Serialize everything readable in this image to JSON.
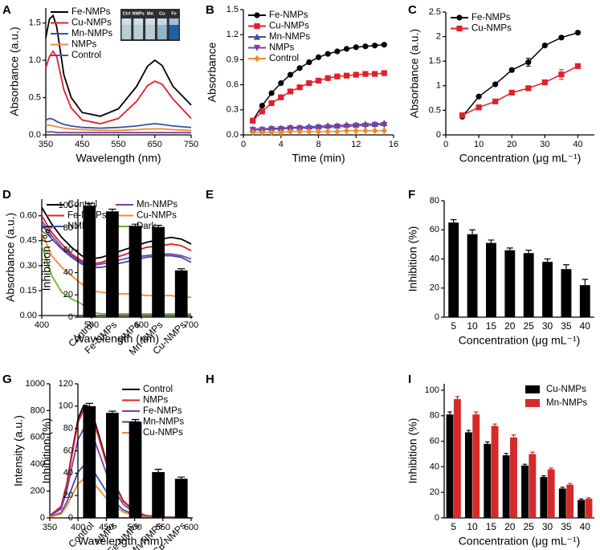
{
  "chart_data": [
    {
      "label": "A",
      "type": "line",
      "xlabel": "Wavelength (nm)",
      "ylabel": "Absorbance (a.u.)",
      "x": [
        350,
        360,
        370,
        380,
        400,
        420,
        450,
        500,
        550,
        600,
        630,
        650,
        670,
        700,
        750
      ],
      "xlim": [
        350,
        750
      ],
      "xticks": [
        350,
        450,
        550,
        650,
        750
      ],
      "ylim": [
        0,
        1.7
      ],
      "yticks": [
        {
          "value": 0,
          "label": "0.0"
        },
        0.5,
        {
          "value": 1,
          "label": "1.0"
        },
        1.5
      ],
      "legend": "upper left",
      "annotations": [
        "Ctrl",
        "NMPs",
        "Mn",
        "Cu",
        "Fe"
      ],
      "series": [
        {
          "name": "Fe-NMPs",
          "color": "#000000",
          "values": [
            1.3,
            1.55,
            1.6,
            1.45,
            0.8,
            0.5,
            0.3,
            0.25,
            0.35,
            0.65,
            0.92,
            1.0,
            0.93,
            0.65,
            0.4
          ]
        },
        {
          "name": "Cu-NMPs",
          "color": "#e0202a",
          "values": [
            0.9,
            1.05,
            1.12,
            1.05,
            0.6,
            0.36,
            0.2,
            0.15,
            0.22,
            0.45,
            0.66,
            0.72,
            0.68,
            0.48,
            0.22
          ]
        },
        {
          "name": "Mn-NMPs",
          "color": "#3a4fa8",
          "values": [
            0.2,
            0.22,
            0.21,
            0.18,
            0.14,
            0.12,
            0.1,
            0.09,
            0.1,
            0.12,
            0.14,
            0.15,
            0.14,
            0.12,
            0.1
          ]
        },
        {
          "name": "NMPs",
          "color": "#f28a30",
          "values": [
            0.13,
            0.13,
            0.12,
            0.11,
            0.09,
            0.08,
            0.07,
            0.06,
            0.06,
            0.07,
            0.08,
            0.08,
            0.08,
            0.07,
            0.06
          ]
        },
        {
          "name": "Control",
          "color": "#7b3fa0",
          "values": [
            0.04,
            0.04,
            0.04,
            0.03,
            0.03,
            0.03,
            0.03,
            0.03,
            0.03,
            0.03,
            0.03,
            0.03,
            0.03,
            0.03,
            0.03
          ]
        }
      ]
    },
    {
      "label": "B",
      "type": "line",
      "xlabel": "Time (min)",
      "ylabel": "Absorbance",
      "x": [
        1,
        2,
        3,
        4,
        5,
        6,
        7,
        8,
        9,
        10,
        11,
        12,
        13,
        14,
        15
      ],
      "xlim": [
        0,
        16
      ],
      "xticks": [
        0,
        4,
        8,
        12,
        16
      ],
      "ylim": [
        0,
        1.5
      ],
      "yticks": [
        {
          "value": 0,
          "label": "0.0"
        },
        0.3,
        0.6,
        0.9,
        1.2,
        1.5
      ],
      "legend": "upper left",
      "markers": true,
      "series": [
        {
          "name": "Fe-NMPs",
          "color": "#000000",
          "marker": "circle",
          "values": [
            0.17,
            0.35,
            0.5,
            0.62,
            0.72,
            0.8,
            0.87,
            0.93,
            0.97,
            1.0,
            1.03,
            1.05,
            1.06,
            1.07,
            1.08
          ]
        },
        {
          "name": "Cu-NMPs",
          "color": "#e0202a",
          "marker": "square",
          "values": [
            0.17,
            0.28,
            0.38,
            0.45,
            0.52,
            0.57,
            0.62,
            0.65,
            0.68,
            0.7,
            0.71,
            0.72,
            0.73,
            0.73,
            0.74
          ]
        },
        {
          "name": "Mn-NMPs",
          "color": "#3a4fa8",
          "marker": "triangle",
          "values": [
            0.07,
            0.07,
            0.08,
            0.08,
            0.09,
            0.09,
            0.1,
            0.1,
            0.11,
            0.11,
            0.12,
            0.12,
            0.13,
            0.13,
            0.14
          ]
        },
        {
          "name": "NMPs",
          "color": "#7b3fa0",
          "marker": "triangle-down",
          "values": [
            0.06,
            0.06,
            0.07,
            0.07,
            0.08,
            0.08,
            0.08,
            0.09,
            0.09,
            0.1,
            0.1,
            0.11,
            0.11,
            0.12,
            0.12
          ]
        },
        {
          "name": "Control",
          "color": "#f28a30",
          "marker": "diamond",
          "values": [
            0.03,
            0.03,
            0.03,
            0.03,
            0.04,
            0.04,
            0.04,
            0.04,
            0.04,
            0.04,
            0.05,
            0.05,
            0.05,
            0.05,
            0.05
          ]
        }
      ]
    },
    {
      "label": "C",
      "type": "line",
      "xlabel": "Concentration (μg mL⁻¹)",
      "ylabel": "Absorbance (a.u.)",
      "x": [
        5,
        10,
        15,
        20,
        25,
        30,
        35,
        40
      ],
      "xlim": [
        0,
        45
      ],
      "xticks": [
        0,
        10,
        20,
        30,
        40
      ],
      "ylim": [
        0,
        2.5
      ],
      "yticks": [
        0,
        0.5,
        1,
        1.5,
        2,
        2.5
      ],
      "legend": "upper left",
      "markers": true,
      "series": [
        {
          "name": "Fe-NMPs",
          "color": "#000000",
          "marker": "circle",
          "values": [
            0.37,
            0.78,
            1.03,
            1.32,
            1.48,
            1.82,
            1.98,
            2.08
          ],
          "errors": [
            0.02,
            0.02,
            0.02,
            0.03,
            0.08,
            0.03,
            0.03,
            0.02
          ]
        },
        {
          "name": "Cu-NMPs",
          "color": "#e0202a",
          "marker": "square",
          "values": [
            0.4,
            0.56,
            0.68,
            0.86,
            0.95,
            1.07,
            1.23,
            1.4
          ],
          "errors": [
            0.02,
            0.02,
            0.02,
            0.02,
            0.03,
            0.03,
            0.1,
            0.03
          ]
        }
      ]
    },
    {
      "label": "D",
      "type": "line",
      "xlabel": "Wavelength (nm)",
      "ylabel": "Absorbance (a.u.)",
      "x": [
        400,
        420,
        440,
        460,
        480,
        500,
        520,
        550,
        580,
        610,
        640,
        660,
        680,
        700
      ],
      "xlim": [
        400,
        700
      ],
      "xticks": [
        400,
        500,
        600,
        700
      ],
      "ylim": [
        0,
        0.7
      ],
      "yticks": [
        {
          "value": 0,
          "label": "0.00"
        },
        0.15,
        {
          "value": 0.3,
          "label": "0.30"
        },
        0.45,
        {
          "value": 0.6,
          "label": "0.60"
        }
      ],
      "legend": "upper",
      "legend_columns": 2,
      "series": [
        {
          "name": "Control",
          "color": "#000000",
          "values": [
            0.65,
            0.55,
            0.47,
            0.41,
            0.36,
            0.34,
            0.35,
            0.38,
            0.41,
            0.44,
            0.46,
            0.47,
            0.46,
            0.43
          ]
        },
        {
          "name": "Mn-NMPs",
          "color": "#7b3fa0",
          "values": [
            0.57,
            0.48,
            0.41,
            0.36,
            0.32,
            0.3,
            0.31,
            0.33,
            0.35,
            0.36,
            0.37,
            0.37,
            0.36,
            0.34
          ]
        },
        {
          "name": "Fe-NMPs",
          "color": "#e0202a",
          "values": [
            0.6,
            0.5,
            0.43,
            0.37,
            0.33,
            0.31,
            0.32,
            0.35,
            0.38,
            0.41,
            0.42,
            0.43,
            0.42,
            0.39
          ]
        },
        {
          "name": "Cu-NMPs",
          "color": "#f28a30",
          "values": [
            0.5,
            0.36,
            0.29,
            0.24,
            0.19,
            0.15,
            0.14,
            0.13,
            0.13,
            0.12,
            0.12,
            0.12,
            0.11,
            0.11
          ]
        },
        {
          "name": "NMPs",
          "color": "#3a4fa8",
          "values": [
            0.55,
            0.46,
            0.4,
            0.35,
            0.31,
            0.29,
            0.29,
            0.31,
            0.33,
            0.35,
            0.36,
            0.36,
            0.35,
            0.32
          ]
        },
        {
          "name": "Dark",
          "color": "#6ab42d",
          "values": [
            0.42,
            0.24,
            0.14,
            0.1,
            0.07,
            0.02,
            0.01,
            0.01,
            0.01,
            0.01,
            0.01,
            0.01,
            0.01,
            0.01
          ]
        }
      ]
    },
    {
      "label": "E",
      "type": "bar",
      "ylabel": "Inhibition (%)",
      "color": "#000000",
      "xtick_rotation": 45,
      "categories": [
        "Control",
        "Fe-NMPs",
        "NMPs",
        "Mn-NMPs",
        "Cu-NMPs"
      ],
      "values": [
        100,
        95,
        82,
        81,
        42
      ],
      "errors": [
        2,
        2,
        1.5,
        1.5,
        1.5
      ],
      "ylim": [
        0,
        106
      ],
      "yticks": [
        0,
        20,
        40,
        60,
        80,
        100
      ]
    },
    {
      "label": "F",
      "type": "bar",
      "xlabel": "Concentration (μg mL⁻¹)",
      "ylabel": "Inhibition (%)",
      "color": "#000000",
      "categories": [
        "5",
        "10",
        "15",
        "20",
        "25",
        "30",
        "35",
        "40"
      ],
      "values": [
        65,
        57,
        51,
        46,
        44,
        38,
        33,
        22
      ],
      "errors": [
        2,
        3,
        2,
        1.5,
        2,
        2,
        3,
        4
      ],
      "ylim": [
        0,
        80
      ],
      "yticks": [
        0,
        20,
        40,
        60,
        80
      ]
    },
    {
      "label": "G",
      "type": "line",
      "xlabel": "Wavelength (nm)",
      "ylabel": "Intensity (a.u.)",
      "x": [
        350,
        370,
        380,
        390,
        400,
        410,
        415,
        420,
        430,
        440,
        450,
        460,
        480,
        500,
        520,
        550,
        600
      ],
      "xlim": [
        350,
        600
      ],
      "xticks": [
        350,
        400,
        450,
        500,
        550,
        600
      ],
      "ylim": [
        0,
        1000
      ],
      "yticks": [
        0,
        200,
        400,
        600,
        800,
        1000
      ],
      "legend": "upper right",
      "series": [
        {
          "name": "Control",
          "color": "#000000",
          "values": [
            17,
            84,
            252,
            504,
            739,
            840,
            840,
            815,
            714,
            571,
            420,
            294,
            126,
            50,
            17,
            8,
            0
          ]
        },
        {
          "name": "NMPs",
          "color": "#e0202a",
          "values": [
            16,
            81,
            243,
            486,
            713,
            810,
            810,
            786,
            689,
            551,
            405,
            284,
            122,
            49,
            16,
            8,
            0
          ]
        },
        {
          "name": "Fe-NMPs",
          "color": "#7b3fa0",
          "values": [
            13,
            67,
            200,
            399,
            585,
            665,
            665,
            645,
            565,
            452,
            333,
            233,
            100,
            40,
            13,
            7,
            0
          ]
        },
        {
          "name": "Mn-NMPs",
          "color": "#3a4fa8",
          "values": [
            8,
            39,
            117,
            234,
            343,
            390,
            390,
            378,
            332,
            265,
            195,
            137,
            59,
            23,
            8,
            4,
            0
          ]
        },
        {
          "name": "Cu-NMPs",
          "color": "#f28a30",
          "values": [
            6,
            29,
            87,
            174,
            255,
            290,
            290,
            281,
            247,
            197,
            145,
            102,
            44,
            17,
            6,
            3,
            0
          ]
        }
      ]
    },
    {
      "label": "H",
      "type": "bar",
      "ylabel": "Inhibition (%)",
      "color": "#000000",
      "xtick_rotation": 45,
      "categories": [
        "Control",
        "NMPs",
        "Fe-NMPs",
        "Mn-NMPs",
        "Cu-NMPs"
      ],
      "values": [
        100,
        94,
        86,
        41,
        35
      ],
      "errors": [
        2.5,
        1.5,
        2,
        2.5,
        1.5
      ],
      "ylim": [
        0,
        120
      ],
      "yticks": [
        0,
        20,
        40,
        60,
        80,
        100,
        120
      ]
    },
    {
      "label": "I",
      "type": "bar",
      "xlabel": "Concentration (μg mL⁻¹)",
      "ylabel": "Inhibition (%)",
      "categories": [
        "5",
        "10",
        "15",
        "20",
        "25",
        "30",
        "35",
        "40"
      ],
      "legend": "upper right",
      "ylim": [
        0,
        105
      ],
      "yticks": [
        0,
        20,
        40,
        60,
        80,
        100
      ],
      "series": [
        {
          "name": "Cu-NMPs",
          "color": "#000000",
          "values": [
            81,
            67,
            58,
            49,
            41,
            32,
            23,
            14
          ],
          "errors": [
            2,
            1.5,
            1.5,
            1.5,
            1,
            1,
            1,
            0.8
          ]
        },
        {
          "name": "Mn-NMPs",
          "color": "#d42a2a",
          "values": [
            93,
            81,
            72,
            63,
            50,
            38,
            26,
            15
          ],
          "errors": [
            2,
            2,
            1.5,
            2,
            1.5,
            1,
            1,
            0.8
          ]
        }
      ]
    }
  ]
}
